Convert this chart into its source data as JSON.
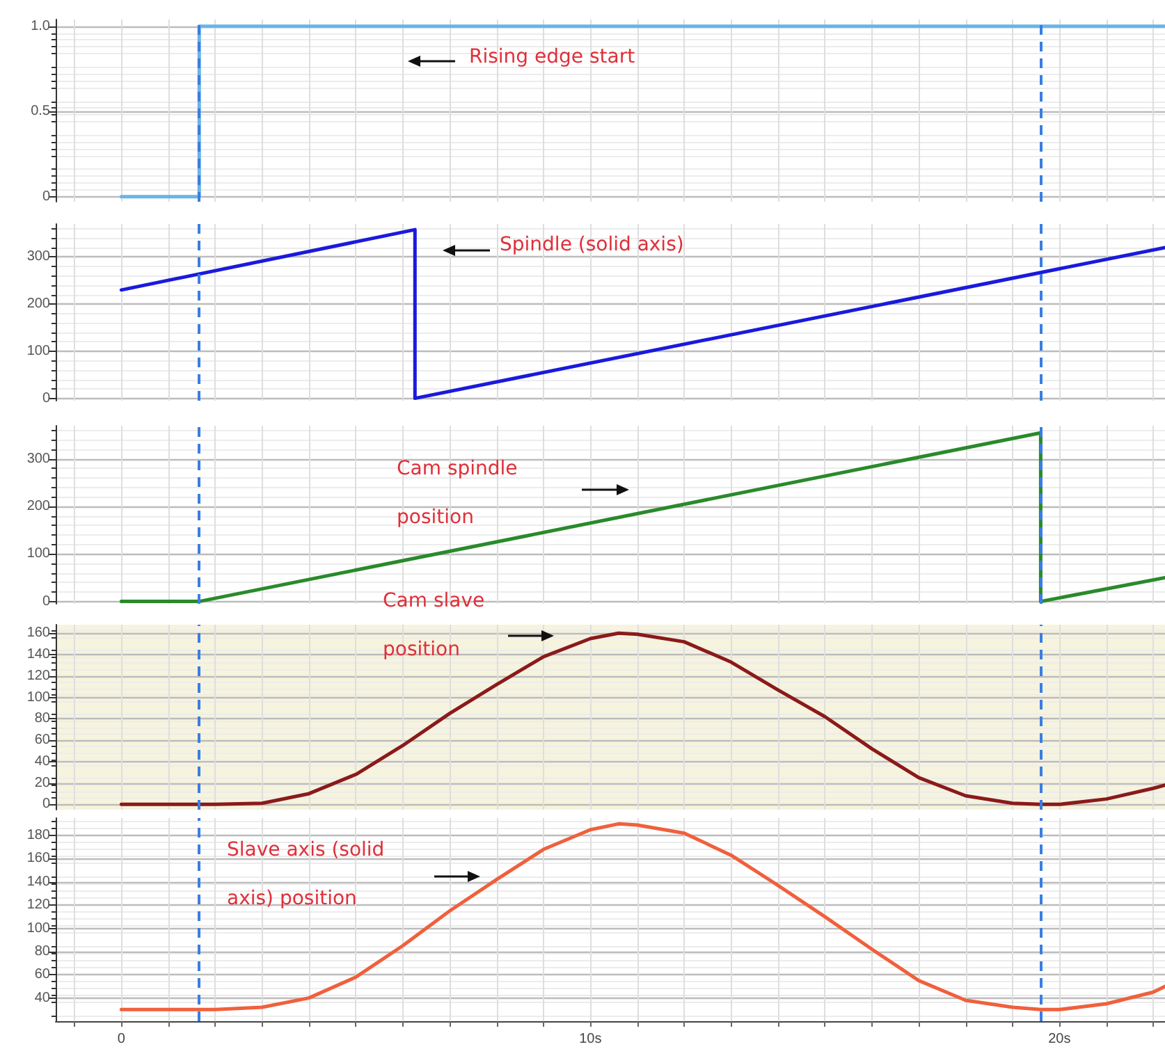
{
  "chart_data": [
    {
      "type": "step",
      "x": [
        0,
        1.66,
        22.25
      ],
      "values": [
        0,
        1,
        1
      ],
      "color": "#6ab4e8",
      "xlim": [
        -1.4,
        22.25
      ],
      "ylim": [
        -0.03,
        1.04
      ],
      "yticks": [
        0,
        0.5,
        {
          "value": 1,
          "label": "1.0"
        }
      ],
      "xticks": [
        -1,
        0,
        1,
        2,
        3,
        4,
        5,
        6,
        7,
        8,
        9,
        10,
        11,
        12,
        13,
        14,
        15,
        16,
        17,
        18,
        19,
        20,
        21,
        22
      ],
      "tick_labels": "y",
      "grid": true,
      "ref_lines": [
        {
          "axis": "x",
          "value": 1.66,
          "color": "#3a7ee0",
          "line_style": "dashed"
        },
        {
          "axis": "x",
          "value": 19.6,
          "color": "#3a7ee0",
          "line_style": "dashed"
        }
      ],
      "annotations": [
        "Rising edge start"
      ]
    },
    {
      "type": "line",
      "x": [
        0,
        6.26,
        6.26,
        22.25
      ],
      "values": [
        230,
        358,
        0,
        320
      ],
      "color": "#1a1adc",
      "xlim": [
        -1.4,
        22.25
      ],
      "ylim": [
        -5,
        370
      ],
      "yticks": [
        0,
        100,
        200,
        300
      ],
      "xticks": [
        -1,
        0,
        1,
        2,
        3,
        4,
        5,
        6,
        7,
        8,
        9,
        10,
        11,
        12,
        13,
        14,
        15,
        16,
        17,
        18,
        19,
        20,
        21,
        22
      ],
      "tick_labels": "y",
      "grid": true,
      "ref_lines": [
        {
          "axis": "x",
          "value": 1.66,
          "color": "#3a7ee0",
          "line_style": "dashed"
        },
        {
          "axis": "x",
          "value": 19.6,
          "color": "#3a7ee0",
          "line_style": "dashed"
        }
      ],
      "annotations": [
        "Spindle (solid axis)"
      ]
    },
    {
      "type": "line",
      "x": [
        0,
        1.66,
        19.6,
        19.6,
        22.25
      ],
      "values": [
        0,
        0,
        355,
        0,
        50
      ],
      "color": "#2a8a2a",
      "xlim": [
        -1.4,
        22.25
      ],
      "ylim": [
        -5,
        370
      ],
      "yticks": [
        0,
        100,
        200,
        300
      ],
      "xticks": [
        -1,
        0,
        1,
        2,
        3,
        4,
        5,
        6,
        7,
        8,
        9,
        10,
        11,
        12,
        13,
        14,
        15,
        16,
        17,
        18,
        19,
        20,
        21,
        22
      ],
      "tick_labels": "y",
      "grid": true,
      "ref_lines": [
        {
          "axis": "x",
          "value": 1.66,
          "color": "#3a7ee0",
          "line_style": "dashed"
        },
        {
          "axis": "x",
          "value": 19.6,
          "color": "#3a7ee0",
          "line_style": "dashed"
        }
      ],
      "annotations": [
        "Cam spindle position"
      ]
    },
    {
      "type": "line",
      "x": [
        0,
        1,
        1.66,
        2,
        3,
        4,
        5,
        6,
        7,
        8,
        9,
        10,
        10.6,
        11,
        12,
        13,
        14,
        15,
        16,
        17,
        18,
        19,
        19.6,
        20,
        21,
        22,
        22.25
      ],
      "values": [
        0,
        0,
        0,
        0,
        1,
        10,
        28,
        55,
        85,
        112,
        138,
        155,
        160,
        159,
        152,
        133,
        107,
        82,
        52,
        25,
        8,
        1,
        0,
        0,
        5,
        15,
        18
      ],
      "color": "#8b1a1a",
      "xlim": [
        -1.4,
        22.25
      ],
      "ylim": [
        -5,
        168
      ],
      "yticks": [
        0,
        20,
        40,
        60,
        80,
        100,
        120,
        140,
        160
      ],
      "xticks": [
        -1,
        0,
        1,
        2,
        3,
        4,
        5,
        6,
        7,
        8,
        9,
        10,
        11,
        12,
        13,
        14,
        15,
        16,
        17,
        18,
        19,
        20,
        21,
        22
      ],
      "tick_labels": "y",
      "grid": true,
      "ref_lines": [
        {
          "axis": "x",
          "value": 1.66,
          "color": "#3a7ee0",
          "line_style": "dashed"
        },
        {
          "axis": "x",
          "value": 19.6,
          "color": "#3a7ee0",
          "line_style": "dashed"
        }
      ],
      "annotations": [
        "Cam slave position"
      ]
    },
    {
      "type": "line",
      "x": [
        0,
        1,
        1.66,
        2,
        3,
        4,
        5,
        6,
        7,
        8,
        9,
        10,
        10.6,
        11,
        12,
        13,
        14,
        15,
        16,
        17,
        18,
        19,
        19.6,
        20,
        21,
        22,
        22.25
      ],
      "values": [
        30,
        30,
        30,
        30,
        32,
        40,
        58,
        85,
        115,
        142,
        168,
        185,
        190,
        189,
        182,
        163,
        137,
        110,
        82,
        55,
        38,
        32,
        30,
        30,
        35,
        45,
        50
      ],
      "color": "#f0603c",
      "xlim": [
        -1.4,
        22.25
      ],
      "ylim": [
        20,
        195
      ],
      "yticks": [
        40,
        60,
        80,
        100,
        120,
        140,
        160,
        180
      ],
      "xticks": [
        {
          "value": -1,
          "label": null
        },
        0,
        {
          "value": 1,
          "label": null
        },
        {
          "value": 2,
          "label": null
        },
        {
          "value": 3,
          "label": null
        },
        {
          "value": 4,
          "label": null
        },
        {
          "value": 5,
          "label": null
        },
        {
          "value": 6,
          "label": null
        },
        {
          "value": 7,
          "label": null
        },
        {
          "value": 8,
          "label": null
        },
        {
          "value": 9,
          "label": null
        },
        {
          "value": 10,
          "label": "10s"
        },
        {
          "value": 11,
          "label": null
        },
        {
          "value": 12,
          "label": null
        },
        {
          "value": 13,
          "label": null
        },
        {
          "value": 14,
          "label": null
        },
        {
          "value": 15,
          "label": null
        },
        {
          "value": 16,
          "label": null
        },
        {
          "value": 17,
          "label": null
        },
        {
          "value": 18,
          "label": null
        },
        {
          "value": 19,
          "label": null
        },
        {
          "value": 20,
          "label": "20s"
        },
        {
          "value": 21,
          "label": null
        },
        {
          "value": 22,
          "label": null
        }
      ],
      "grid": true,
      "ref_lines": [
        {
          "axis": "x",
          "value": 1.66,
          "color": "#3a7ee0",
          "line_style": "dashed"
        },
        {
          "axis": "x",
          "value": 19.6,
          "color": "#3a7ee0",
          "line_style": "dashed"
        }
      ],
      "annotations": [
        "Slave axis (solid axis) position"
      ]
    }
  ]
}
